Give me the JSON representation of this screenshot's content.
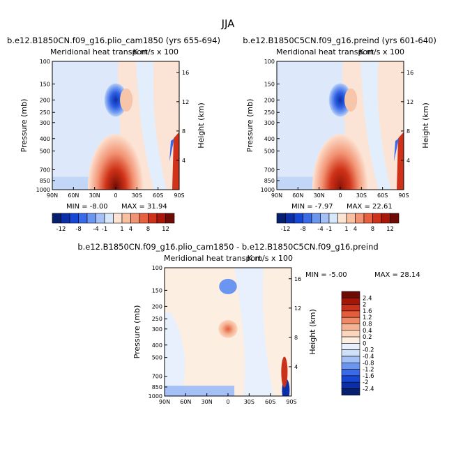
{
  "figure_title": "JJA",
  "chart_data": [
    {
      "type": "heatmap",
      "title": "b.e12.B1850CN.f09_g16.plio_cam1850 (yrs 655-694)",
      "subtitle": "Meridional heat transport",
      "units": "K m/s x 100",
      "xlabel": "",
      "ylabel": "Pressure (mb)",
      "y2label": "Height (km)",
      "x_ticks": [
        "90N",
        "60N",
        "30N",
        "0",
        "30S",
        "60S",
        "90S"
      ],
      "y_ticks": [
        100,
        150,
        200,
        250,
        300,
        400,
        500,
        700,
        850,
        1000
      ],
      "y2_ticks": [
        4,
        8,
        12,
        16
      ],
      "ylim": [
        1000,
        100
      ],
      "y_scale": "log",
      "min_label": "MIN =  -8.00",
      "max_label": "MAX =  31.94",
      "stats": {
        "min": -8.0,
        "max": 31.94
      },
      "colorbar": {
        "orientation": "horizontal",
        "ticks": [
          "-12",
          "-8",
          "-4",
          "-1",
          "1",
          "4",
          "8",
          "12"
        ]
      },
      "features": [
        {
          "type": "min",
          "lat": 0,
          "p": 200,
          "value": -8.0
        },
        {
          "type": "max",
          "lat": 0,
          "p": 970,
          "value": 31.94
        },
        {
          "type": "pos",
          "lat": -15,
          "p": 200,
          "value": 2
        }
      ]
    },
    {
      "type": "heatmap",
      "title": "b.e12.B1850C5CN.f09_g16.preind (yrs 601-640)",
      "subtitle": "Meridional heat transport",
      "units": "K m/s x 100",
      "xlabel": "",
      "ylabel": "Pressure (mb)",
      "y2label": "Height (km)",
      "x_ticks": [
        "90N",
        "60N",
        "30N",
        "0",
        "30S",
        "60S",
        "90S"
      ],
      "y_ticks": [
        100,
        150,
        200,
        250,
        300,
        400,
        500,
        700,
        850,
        1000
      ],
      "y2_ticks": [
        4,
        8,
        12,
        16
      ],
      "ylim": [
        1000,
        100
      ],
      "y_scale": "log",
      "min_label": "MIN =  -7.97",
      "max_label": "MAX =  22.61",
      "stats": {
        "min": -7.97,
        "max": 22.61
      },
      "colorbar": {
        "orientation": "horizontal",
        "ticks": [
          "-12",
          "-8",
          "-4",
          "-1",
          "1",
          "4",
          "8",
          "12"
        ]
      },
      "features": [
        {
          "type": "min",
          "lat": 0,
          "p": 200,
          "value": -7.97
        },
        {
          "type": "max",
          "lat": 0,
          "p": 970,
          "value": 22.61
        },
        {
          "type": "pos",
          "lat": -15,
          "p": 200,
          "value": 2
        }
      ]
    },
    {
      "type": "heatmap",
      "title": "b.e12.B1850CN.f09_g16.plio_cam1850 - b.e12.B1850C5CN.f09_g16.preind",
      "subtitle": "Meridional heat transport",
      "units": "K m/s x 100",
      "xlabel": "",
      "ylabel": "Pressure (mb)",
      "y2label": "Height (km)",
      "x_ticks": [
        "90N",
        "60N",
        "30N",
        "0",
        "30S",
        "60S",
        "90S"
      ],
      "y_ticks": [
        100,
        150,
        200,
        250,
        300,
        400,
        500,
        700,
        850,
        1000
      ],
      "y2_ticks": [
        4,
        8,
        12,
        16
      ],
      "ylim": [
        1000,
        100
      ],
      "y_scale": "log",
      "min_label": "MIN =  -5.00",
      "max_label": "MAX =  28.14",
      "stats": {
        "min": -5.0,
        "max": 28.14
      },
      "colorbar": {
        "orientation": "vertical",
        "ticks": [
          "2.4",
          "2",
          "1.6",
          "1.2",
          "0.8",
          "0.4",
          "0.2",
          "0",
          "-0.2",
          "-0.4",
          "-0.8",
          "-1.2",
          "-1.6",
          "-2",
          "-2.4"
        ]
      },
      "features": [
        {
          "type": "neg",
          "lat": 0,
          "p": 140,
          "value": -1.6
        },
        {
          "type": "pos",
          "lat": 0,
          "p": 300,
          "value": 1.6
        },
        {
          "type": "neg",
          "lat": -82,
          "p": 900,
          "value": -2.4
        },
        {
          "type": "pos",
          "lat": -80,
          "p": 650,
          "value": 2.4
        }
      ]
    }
  ]
}
